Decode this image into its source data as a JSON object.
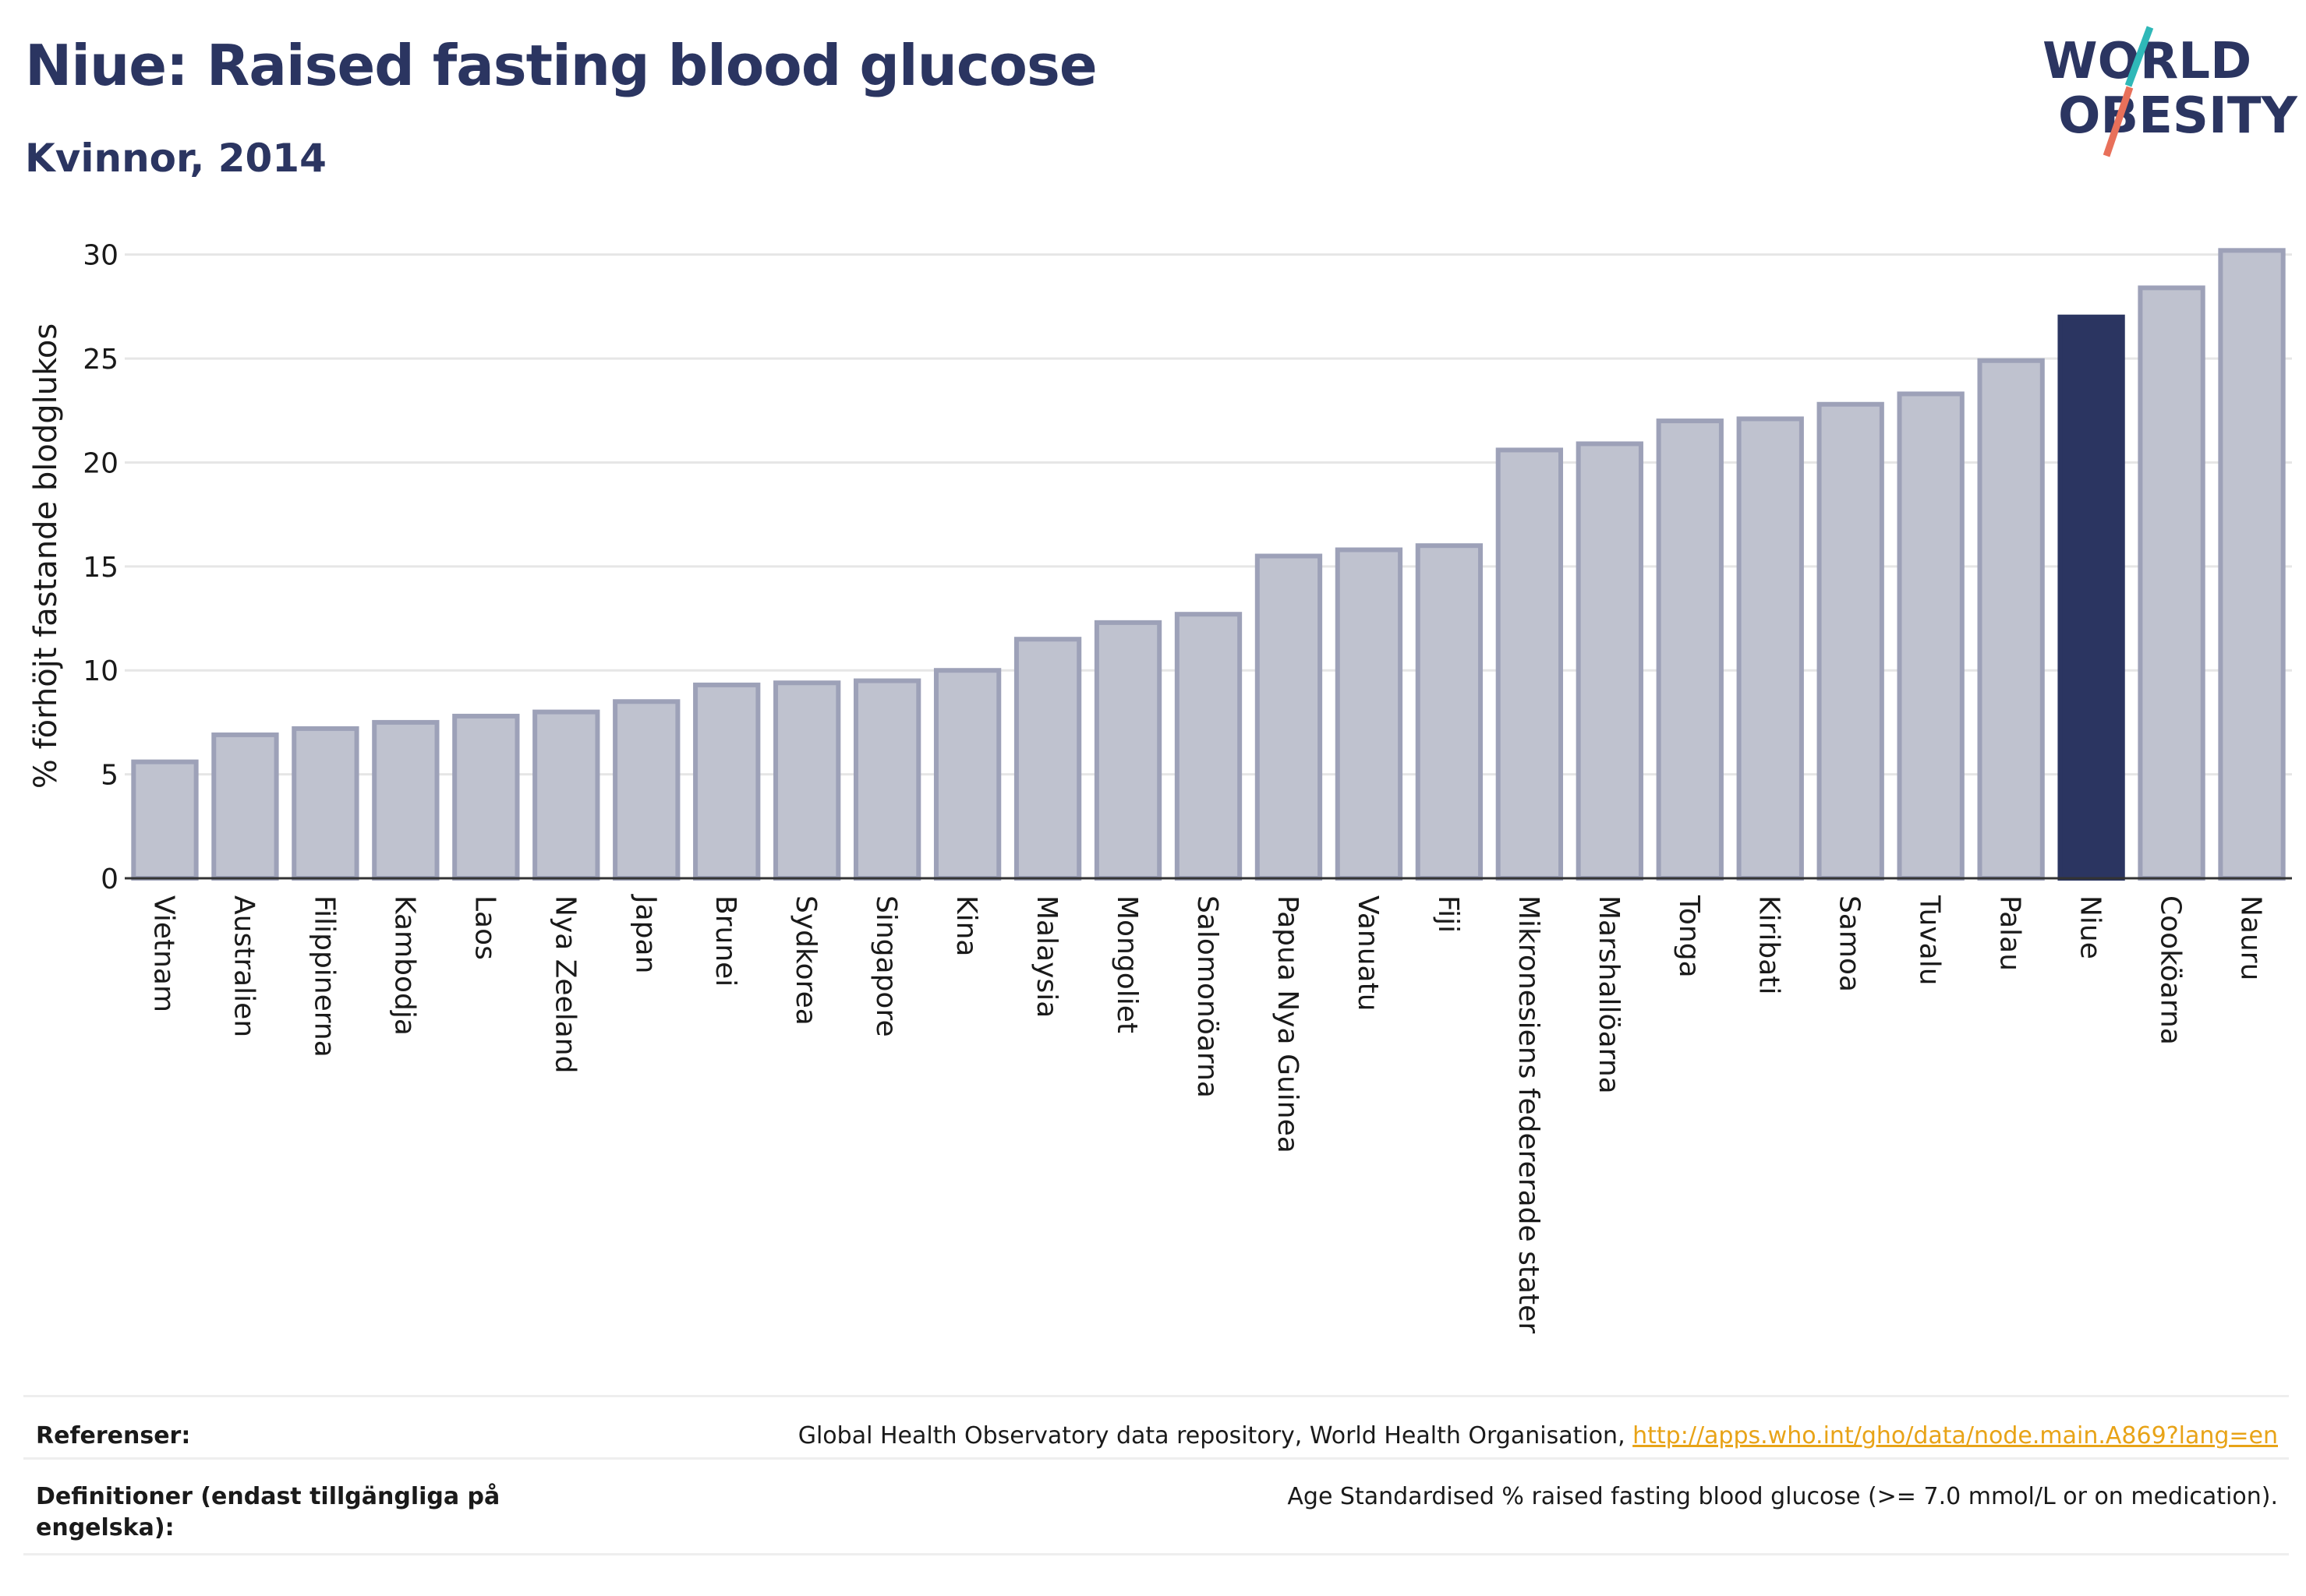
{
  "header": {
    "title": "Niue: Raised fasting blood glucose",
    "subtitle": "Kvinnor, 2014"
  },
  "logo": {
    "line1": "WORLD",
    "line2": "OBESITY",
    "text_color": "#2b3561",
    "accent_colors": [
      "#2fb8b8",
      "#e8705a"
    ]
  },
  "chart_data": {
    "type": "bar",
    "ylabel": "% förhöjt fastande blodglukos",
    "xlabel": "",
    "ylim": [
      0,
      31
    ],
    "yticks": [
      0,
      5,
      10,
      15,
      20,
      25,
      30
    ],
    "grid": true,
    "highlight": "Niue",
    "highlight_color": "#2b3561",
    "bar_color": "#bfc2cf",
    "bar_border_color": "#9da1b8",
    "categories": [
      "Vietnam",
      "Australien",
      "Filippinerna",
      "Kambodja",
      "Laos",
      "Nya Zeeland",
      "Japan",
      "Brunei",
      "Sydkorea",
      "Singapore",
      "Kina",
      "Malaysia",
      "Mongoliet",
      "Salomonöarna",
      "Papua Nya Guinea",
      "Vanuatu",
      "Fiji",
      "Mikronesiens federerade stater",
      "Marshallöarna",
      "Tonga",
      "Kiribati",
      "Samoa",
      "Tuvalu",
      "Palau",
      "Niue",
      "Cooköarna",
      "Nauru"
    ],
    "values": [
      5.6,
      6.9,
      7.2,
      7.5,
      7.8,
      8.0,
      8.5,
      9.3,
      9.4,
      9.5,
      10.0,
      11.5,
      12.3,
      12.7,
      15.5,
      15.8,
      16.0,
      20.6,
      20.9,
      22.0,
      22.1,
      22.8,
      23.3,
      24.9,
      27.0,
      28.4,
      30.2
    ]
  },
  "footer": {
    "references_label": "Referenser:",
    "references_text": "Global Health Observatory data repository, World Health Organisation, ",
    "references_link": "http://apps.who.int/gho/data/node.main.A869?lang=en",
    "definitions_label": "Definitioner (endast tillgängliga på engelska):",
    "definitions_text": "Age Standardised % raised fasting blood glucose (>= 7.0 mmol/L or on medication)."
  }
}
